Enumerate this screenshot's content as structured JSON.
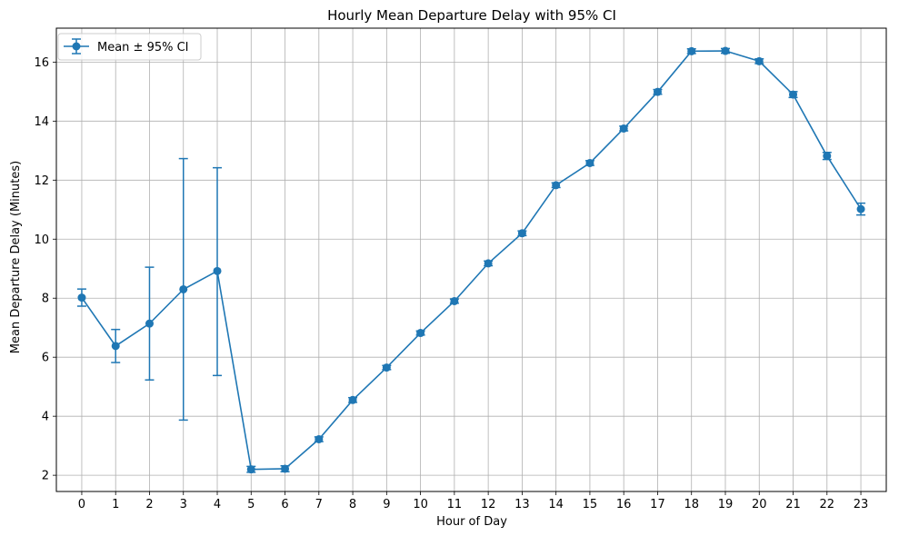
{
  "chart_data": {
    "type": "line",
    "title": "Hourly Mean Departure Delay with 95% CI",
    "xlabel": "Hour of Day",
    "ylabel": "Mean Departure Delay (Minutes)",
    "x": [
      0,
      1,
      2,
      3,
      4,
      5,
      6,
      7,
      8,
      9,
      10,
      11,
      12,
      13,
      14,
      15,
      16,
      17,
      18,
      19,
      20,
      21,
      22,
      23
    ],
    "xticks": [
      "0",
      "1",
      "2",
      "3",
      "4",
      "5",
      "6",
      "7",
      "8",
      "9",
      "10",
      "11",
      "12",
      "13",
      "14",
      "15",
      "16",
      "17",
      "18",
      "19",
      "20",
      "21",
      "22",
      "23"
    ],
    "yticks": [
      "2",
      "4",
      "6",
      "8",
      "10",
      "12",
      "14",
      "16"
    ],
    "ytick_values": [
      2,
      4,
      6,
      8,
      10,
      12,
      14,
      16
    ],
    "xlim": [
      -0.75,
      23.75
    ],
    "ylim": [
      1.45,
      17.15
    ],
    "grid": true,
    "legend_position": "top-left",
    "series": [
      {
        "name": "Mean ± 95% CI",
        "color": "#1f77b4",
        "values": [
          8.02,
          6.38,
          7.14,
          8.3,
          8.92,
          2.2,
          2.22,
          3.22,
          4.55,
          5.65,
          6.82,
          7.9,
          9.18,
          10.2,
          11.83,
          12.58,
          13.75,
          14.99,
          16.37,
          16.38,
          16.03,
          14.9,
          12.82,
          11.02
        ],
        "lower": [
          7.73,
          5.82,
          5.23,
          3.87,
          5.38,
          2.1,
          2.12,
          3.14,
          4.47,
          5.58,
          6.75,
          7.83,
          9.1,
          10.12,
          11.75,
          12.5,
          13.67,
          14.91,
          16.29,
          16.3,
          15.95,
          14.8,
          12.7,
          10.82
        ],
        "upper": [
          8.31,
          6.94,
          9.05,
          12.73,
          12.42,
          2.3,
          2.32,
          3.3,
          4.63,
          5.72,
          6.89,
          7.97,
          9.26,
          10.28,
          11.91,
          12.66,
          13.83,
          15.07,
          16.45,
          16.46,
          16.11,
          15.0,
          12.94,
          11.22
        ]
      }
    ]
  },
  "colors": {
    "series": "#1f77b4",
    "grid": "#b0b0b0",
    "axes": "#000000"
  }
}
